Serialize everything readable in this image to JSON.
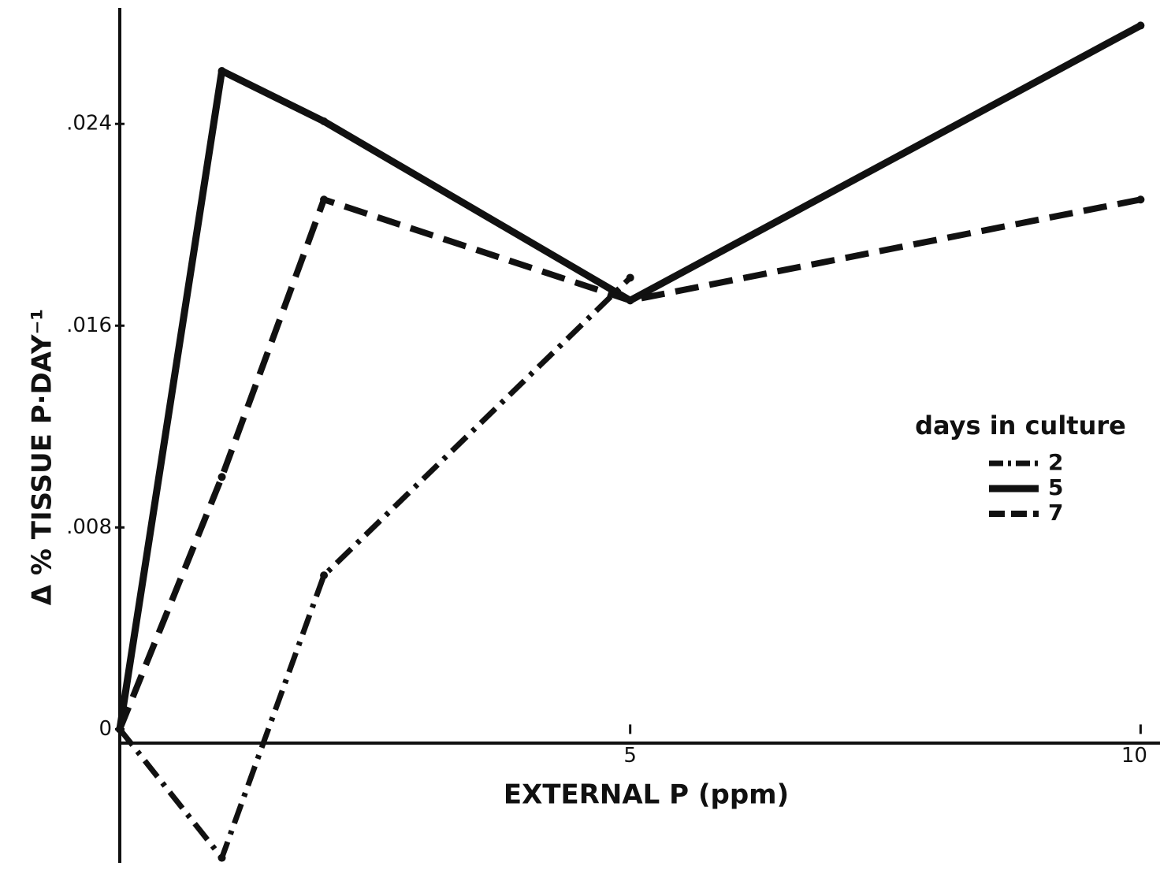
{
  "chart_data": {
    "type": "line",
    "ylabel": "Δ % TISSUE P·DAY⁻¹",
    "xlabel": "EXTERNAL P (ppm)",
    "legend_title": "days in culture",
    "legend": "right",
    "x": [
      0,
      1,
      2,
      5,
      10
    ],
    "series": [
      {
        "name": "2",
        "color": "#111111",
        "dash": "dashdot",
        "values": [
          0,
          -0.0051,
          0.0061,
          0.0179,
          null
        ]
      },
      {
        "name": "5",
        "color": "#111111",
        "dash": "solid",
        "values": [
          0,
          0.0261,
          0.0241,
          0.017,
          0.0279
        ]
      },
      {
        "name": "7",
        "color": "#111111",
        "dash": "dashed",
        "values": [
          0,
          0.01,
          0.021,
          0.017,
          0.021
        ]
      }
    ],
    "xlim": [
      0,
      10.19
    ],
    "ylim": [
      -0.0053,
      0.0286
    ],
    "xticks": [
      5,
      10
    ],
    "yticks": [
      0,
      {
        "value": 0.008,
        "label": ".008"
      },
      {
        "value": 0.016,
        "label": ".016"
      },
      {
        "value": 0.024,
        "label": ".024"
      }
    ]
  }
}
